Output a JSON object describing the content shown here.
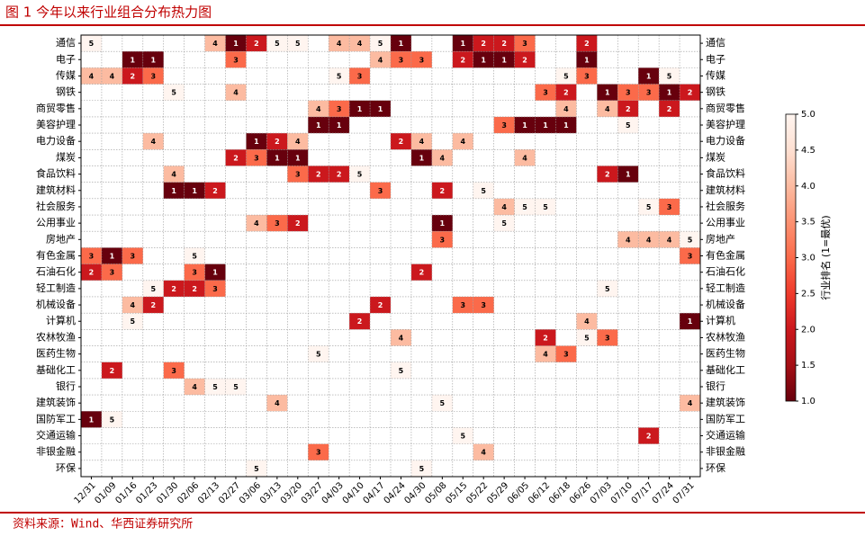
{
  "chart_data": {
    "type": "heatmap",
    "title": "图 1 今年以来行业组合分布热力图",
    "source": "资料来源：Wind、华西证券研究所",
    "x_categories": [
      "12/31",
      "01/09",
      "01/16",
      "01/23",
      "01/30",
      "02/06",
      "02/13",
      "02/27",
      "03/06",
      "03/13",
      "03/20",
      "03/27",
      "04/03",
      "04/10",
      "04/17",
      "04/24",
      "04/30",
      "05/08",
      "05/15",
      "05/22",
      "05/29",
      "06/05",
      "06/12",
      "06/18",
      "06/26",
      "07/03",
      "07/10",
      "07/17",
      "07/24",
      "07/31"
    ],
    "y_categories": [
      "通信",
      "电子",
      "传媒",
      "钢铁",
      "商贸零售",
      "美容护理",
      "电力设备",
      "煤炭",
      "食品饮料",
      "建筑材料",
      "社会服务",
      "公用事业",
      "房地产",
      "有色金属",
      "石油石化",
      "轻工制造",
      "机械设备",
      "计算机",
      "农林牧渔",
      "医药生物",
      "基础化工",
      "银行",
      "建筑装饰",
      "国防军工",
      "交通运输",
      "非银金融",
      "环保"
    ],
    "values": [
      [
        5,
        null,
        null,
        null,
        null,
        null,
        4,
        1,
        2,
        5,
        5,
        null,
        4,
        4,
        5,
        1,
        null,
        null,
        1,
        2,
        2,
        3,
        null,
        null,
        2,
        null,
        null,
        null,
        null,
        null
      ],
      [
        null,
        null,
        1,
        1,
        null,
        null,
        null,
        3,
        null,
        null,
        null,
        null,
        null,
        null,
        4,
        3,
        3,
        null,
        2,
        1,
        1,
        2,
        null,
        null,
        1,
        null,
        null,
        null,
        null,
        null
      ],
      [
        4,
        4,
        2,
        3,
        null,
        null,
        null,
        null,
        null,
        null,
        null,
        null,
        5,
        3,
        null,
        null,
        null,
        null,
        null,
        null,
        null,
        null,
        null,
        5,
        3,
        null,
        null,
        1,
        5,
        null
      ],
      [
        null,
        null,
        null,
        null,
        5,
        null,
        null,
        4,
        null,
        null,
        null,
        null,
        null,
        null,
        null,
        null,
        null,
        null,
        null,
        null,
        null,
        null,
        3,
        2,
        null,
        1,
        3,
        3,
        1,
        2
      ],
      [
        null,
        null,
        null,
        null,
        null,
        null,
        null,
        null,
        null,
        null,
        null,
        4,
        3,
        1,
        1,
        null,
        null,
        null,
        null,
        null,
        null,
        null,
        null,
        4,
        null,
        4,
        2,
        null,
        2,
        null
      ],
      [
        null,
        null,
        null,
        null,
        null,
        null,
        null,
        null,
        null,
        null,
        null,
        1,
        1,
        null,
        null,
        null,
        null,
        null,
        null,
        null,
        3,
        1,
        1,
        1,
        null,
        null,
        5,
        null,
        null,
        null
      ],
      [
        null,
        null,
        null,
        4,
        null,
        null,
        null,
        null,
        1,
        2,
        4,
        null,
        null,
        null,
        null,
        2,
        4,
        null,
        4,
        null,
        null,
        null,
        null,
        null,
        null,
        null,
        null,
        null,
        null,
        null
      ],
      [
        null,
        null,
        null,
        null,
        null,
        null,
        null,
        2,
        3,
        1,
        1,
        null,
        null,
        null,
        null,
        null,
        1,
        4,
        null,
        null,
        null,
        4,
        null,
        null,
        null,
        null,
        null,
        null,
        null,
        null
      ],
      [
        null,
        null,
        null,
        null,
        4,
        null,
        null,
        null,
        null,
        null,
        3,
        2,
        2,
        5,
        null,
        null,
        null,
        null,
        null,
        null,
        null,
        null,
        null,
        null,
        null,
        2,
        1,
        null,
        null,
        null
      ],
      [
        null,
        null,
        null,
        null,
        1,
        1,
        2,
        null,
        null,
        null,
        null,
        null,
        null,
        null,
        3,
        null,
        null,
        2,
        null,
        5,
        null,
        null,
        null,
        null,
        null,
        null,
        null,
        null,
        null,
        null
      ],
      [
        null,
        null,
        null,
        null,
        null,
        null,
        null,
        null,
        null,
        null,
        null,
        null,
        null,
        null,
        null,
        null,
        null,
        null,
        null,
        null,
        4,
        5,
        5,
        null,
        null,
        null,
        null,
        5,
        3,
        null
      ],
      [
        null,
        null,
        null,
        null,
        null,
        null,
        null,
        null,
        4,
        3,
        2,
        null,
        null,
        null,
        null,
        null,
        null,
        1,
        null,
        null,
        5,
        null,
        null,
        null,
        null,
        null,
        null,
        null,
        null,
        null
      ],
      [
        null,
        null,
        null,
        null,
        null,
        null,
        null,
        null,
        null,
        null,
        null,
        null,
        null,
        null,
        null,
        null,
        null,
        3,
        null,
        null,
        null,
        null,
        null,
        null,
        null,
        null,
        4,
        4,
        4,
        5
      ],
      [
        3,
        1,
        3,
        null,
        null,
        5,
        null,
        null,
        null,
        null,
        null,
        null,
        null,
        null,
        null,
        null,
        null,
        null,
        null,
        null,
        null,
        null,
        null,
        null,
        null,
        null,
        null,
        null,
        null,
        3
      ],
      [
        2,
        3,
        null,
        null,
        null,
        3,
        1,
        null,
        null,
        null,
        null,
        null,
        null,
        null,
        null,
        null,
        2,
        null,
        null,
        null,
        null,
        null,
        null,
        null,
        null,
        null,
        null,
        null,
        null,
        null
      ],
      [
        null,
        null,
        null,
        5,
        2,
        2,
        3,
        null,
        null,
        null,
        null,
        null,
        null,
        null,
        null,
        null,
        null,
        null,
        null,
        null,
        null,
        null,
        null,
        null,
        null,
        5,
        null,
        null,
        null,
        null
      ],
      [
        null,
        null,
        4,
        2,
        null,
        null,
        null,
        null,
        null,
        null,
        null,
        null,
        null,
        null,
        2,
        null,
        null,
        null,
        3,
        3,
        null,
        null,
        null,
        null,
        null,
        null,
        null,
        null,
        null,
        null
      ],
      [
        null,
        null,
        5,
        null,
        null,
        null,
        null,
        null,
        null,
        null,
        null,
        null,
        null,
        2,
        null,
        null,
        null,
        null,
        null,
        null,
        null,
        null,
        null,
        null,
        4,
        null,
        null,
        null,
        null,
        1
      ],
      [
        null,
        null,
        null,
        null,
        null,
        null,
        null,
        null,
        null,
        null,
        null,
        null,
        null,
        null,
        null,
        4,
        null,
        null,
        null,
        null,
        null,
        null,
        2,
        null,
        5,
        3,
        null,
        null,
        null,
        null
      ],
      [
        null,
        null,
        null,
        null,
        null,
        null,
        null,
        null,
        null,
        null,
        null,
        5,
        null,
        null,
        null,
        null,
        null,
        null,
        null,
        null,
        null,
        null,
        4,
        3,
        null,
        null,
        null,
        null,
        null,
        null
      ],
      [
        null,
        2,
        null,
        null,
        3,
        null,
        null,
        null,
        null,
        null,
        null,
        null,
        null,
        null,
        null,
        5,
        null,
        null,
        null,
        null,
        null,
        null,
        null,
        null,
        null,
        null,
        null,
        null,
        null,
        null
      ],
      [
        null,
        null,
        null,
        null,
        null,
        4,
        5,
        5,
        null,
        null,
        null,
        null,
        null,
        null,
        null,
        null,
        null,
        null,
        null,
        null,
        null,
        null,
        null,
        null,
        null,
        null,
        null,
        null,
        null,
        null
      ],
      [
        null,
        null,
        null,
        null,
        null,
        null,
        null,
        null,
        null,
        4,
        null,
        null,
        null,
        null,
        null,
        null,
        null,
        5,
        null,
        null,
        null,
        null,
        null,
        null,
        null,
        null,
        null,
        null,
        null,
        4
      ],
      [
        1,
        5,
        null,
        null,
        null,
        null,
        null,
        null,
        null,
        null,
        null,
        null,
        null,
        null,
        null,
        null,
        null,
        null,
        null,
        null,
        null,
        null,
        null,
        null,
        null,
        null,
        null,
        null,
        null,
        null
      ],
      [
        null,
        null,
        null,
        null,
        null,
        null,
        null,
        null,
        null,
        null,
        null,
        null,
        null,
        null,
        null,
        null,
        null,
        null,
        5,
        null,
        null,
        null,
        null,
        null,
        null,
        null,
        null,
        2,
        null,
        null
      ],
      [
        null,
        null,
        null,
        null,
        null,
        null,
        null,
        null,
        null,
        null,
        null,
        3,
        null,
        null,
        null,
        null,
        null,
        null,
        null,
        4,
        null,
        null,
        null,
        null,
        null,
        null,
        null,
        null,
        null,
        null
      ],
      [
        null,
        null,
        null,
        null,
        null,
        null,
        null,
        null,
        5,
        null,
        null,
        null,
        null,
        null,
        null,
        null,
        5,
        null,
        null,
        null,
        null,
        null,
        null,
        null,
        null,
        null,
        null,
        null,
        null,
        null
      ]
    ],
    "colorbar_label": "行业排名 (1=最优)",
    "clim": [
      1,
      5
    ],
    "colorbar_ticks": [
      {
        "value": 1,
        "label": "1.0"
      },
      {
        "value": 1.5,
        "label": "1.5"
      },
      {
        "value": 2,
        "label": "2.0"
      },
      {
        "value": 2.5,
        "label": "2.5"
      },
      {
        "value": 3,
        "label": "3.0"
      },
      {
        "value": 3.5,
        "label": "3.5"
      },
      {
        "value": 4,
        "label": "4.0"
      },
      {
        "value": 4.5,
        "label": "4.5"
      },
      {
        "value": 5,
        "label": "5.0"
      }
    ],
    "colormap": [
      "#67000d",
      "#a50f15",
      "#cb181d",
      "#ef3b2c",
      "#fb6a4a",
      "#fc9272",
      "#fcbba1",
      "#fee0d2",
      "#fff5f0"
    ]
  }
}
